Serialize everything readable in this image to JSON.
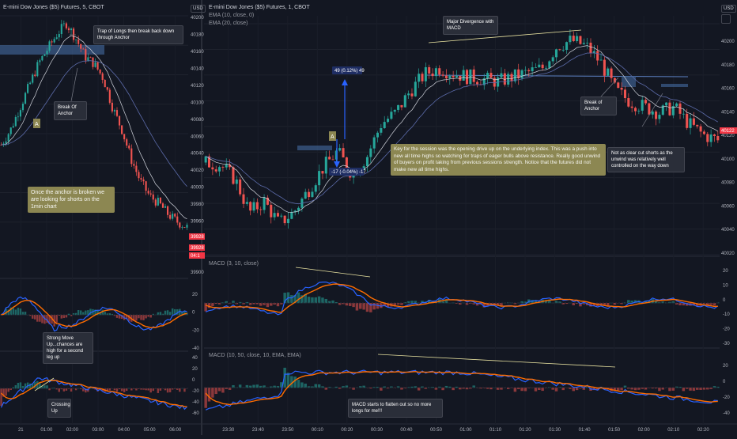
{
  "left_panel": {
    "title": "E-mini Dow Jones ($5) Futures, 5, CBOT",
    "currency_label": "USD",
    "price_axis": [
      "40200",
      "40180",
      "40160",
      "40140",
      "40120",
      "40100",
      "40080",
      "40060",
      "40040",
      "40020",
      "40000",
      "39980",
      "39960",
      "39940",
      "39920",
      "39900"
    ],
    "price_tags": [
      "39928",
      "39928",
      "04:1"
    ],
    "time_axis": [
      "21",
      "01:00",
      "02:00",
      "03:00",
      "04:00",
      "05:00",
      "06:00"
    ],
    "annotations": {
      "trap_of_longs": "Trap of Longs then break back down through Anchor",
      "break_of_anchor": "Break Of Anchor",
      "anchor_marker": "A",
      "once_anchor_broken": "Once the anchor is broken we are looking for shorts on the 1min chart",
      "strong_move_up": "Strong Move Up...chances are high for a second leg up",
      "crossing_up": "Crossing Up"
    },
    "macd1_axis": [
      "20",
      "0",
      "-20",
      "-40"
    ],
    "macd2_axis": [
      "40",
      "20",
      "0",
      "-20",
      "-40",
      "-60"
    ]
  },
  "right_panel": {
    "title": "E-mini Dow Jones ($5) Futures, 1, CBOT",
    "ema_line_1": "EMA (10, close, 0)",
    "ema_line_2": "EMA (20, close)",
    "currency_label": "USD",
    "price_axis": [
      "40200",
      "40180",
      "40160",
      "40140",
      "40120",
      "40100",
      "40080",
      "40060",
      "40040",
      "40020"
    ],
    "price_tag": "40122",
    "time_axis": [
      "23:30",
      "23:40",
      "23:50",
      "00:10",
      "00:20",
      "00:30",
      "00:40",
      "00:50",
      "01:00",
      "01:10",
      "01:20",
      "01:30",
      "01:40",
      "01:50",
      "02:00",
      "02:10",
      "02:20"
    ],
    "annotations": {
      "major_divergence": "Major Divergence with MACD",
      "measure_up": "49 (0.12%) 49",
      "measure_down": "-17 (-0.04%) -17",
      "anchor_marker": "A",
      "session_key": "Key for the session was the opening drive up on the underlying index. This was a push into new all time highs so watching for traps of eager bulls above resistance. Really good unwind of buyers on profit taking from previous sessions strength. Notice that the futures did not make new all time highs.",
      "break_of_anchor": "Break of Anchor",
      "not_as_clear": "Not as clear cut shorts as the unwind was relatively well controlled on the way down",
      "macd_flatten": "MACD starts to flatten out so no more longs for me!!!"
    },
    "macd1_title": "MACD (3, 10, close)",
    "macd1_axis": [
      "20",
      "10",
      "0",
      "-10",
      "-20",
      "-30"
    ],
    "macd2_title": "MACD (10, 50, close, 10, EMA, EMA)",
    "macd2_axis": [
      "20",
      "0",
      "-20",
      "-40"
    ]
  },
  "colors": {
    "background": "#131722",
    "up": "#26a69a",
    "down": "#ef5350",
    "macd_line": "#2962ff",
    "signal_line": "#ff6d00",
    "anchor_zone": "#3d5f8f",
    "olive_note": "#8c8752",
    "trend_line": "#e8e2a0"
  },
  "chart_data": [
    {
      "type": "candlestick",
      "title": "E-mini Dow Jones ($5) Futures, 5, CBOT",
      "x": [
        "21",
        "01:00",
        "02:00",
        "03:00",
        "04:00",
        "05:00",
        "06:00"
      ],
      "close_path": [
        40040,
        40060,
        40090,
        40120,
        40150,
        40170,
        40190,
        40205,
        40185,
        40160,
        40150,
        40130,
        40090,
        40060,
        40020,
        39990,
        39970,
        39960,
        39945,
        39935,
        39928
      ],
      "ylim": [
        39895,
        40215
      ],
      "last_price": 39928
    },
    {
      "type": "candlestick",
      "title": "E-mini Dow Jones ($5) Futures, 1, CBOT",
      "x": [
        "23:30",
        "23:40",
        "23:50",
        "00:10",
        "00:20",
        "00:30",
        "00:40",
        "00:50",
        "01:00",
        "01:10",
        "01:20",
        "01:30",
        "01:40",
        "01:50",
        "02:00",
        "02:10",
        "02:20"
      ],
      "close_path": [
        40095,
        40093,
        40080,
        40050,
        40060,
        40040,
        40050,
        40070,
        40090,
        40105,
        40085,
        40100,
        40130,
        40140,
        40160,
        40175,
        40180,
        40175,
        40172,
        40170,
        40168,
        40172,
        40176,
        40180,
        40200,
        40205,
        40200,
        40185,
        40160,
        40150,
        40145,
        40140,
        40145,
        40130,
        40120,
        40115
      ],
      "ylim": [
        40012,
        40220
      ],
      "last_price": 40122
    }
  ]
}
